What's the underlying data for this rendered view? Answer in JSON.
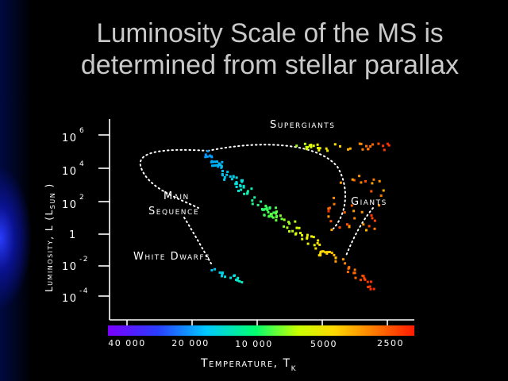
{
  "slide": {
    "title_line1": "Luminosity Scale of the MS is",
    "title_line2": "determined from stellar parallax"
  },
  "diagram": {
    "y_axis": {
      "label_main": "Luminosity, L (L",
      "label_sub": "SUN",
      "label_close": " )",
      "ticks": [
        {
          "base": "10",
          "exp": "6"
        },
        {
          "base": "10",
          "exp": "4"
        },
        {
          "base": "10",
          "exp": "2"
        },
        {
          "base": "1",
          "exp": ""
        },
        {
          "base": "10",
          "exp": "-2"
        },
        {
          "base": "10",
          "exp": "-4"
        }
      ]
    },
    "x_axis": {
      "label_main": "Temperature, T",
      "label_sub": "K",
      "ticks": [
        "40 000",
        "20 000",
        "10 000",
        "5000",
        "2500"
      ]
    },
    "regions": {
      "supergiants": "Supergiants",
      "giants": "Giants",
      "main_line1": "Main",
      "main_line2": "Sequence",
      "white_dwarfs": "White Dwarfs"
    },
    "colors": {
      "title": "#c9c9c9",
      "axis": "#ffffff",
      "spectrum": [
        "#7a00ff",
        "#2b3cff",
        "#00c8ff",
        "#00ff70",
        "#c8ff00",
        "#ffd800",
        "#ff7a00",
        "#ff1a00"
      ]
    }
  }
}
